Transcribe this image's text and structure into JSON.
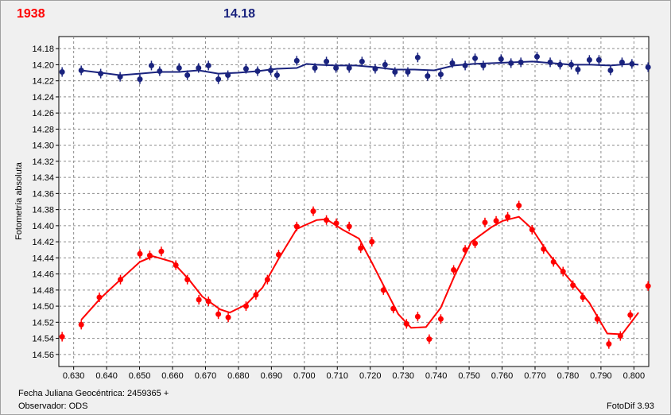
{
  "header": {
    "left_label": "1938",
    "right_label": "14.18"
  },
  "footer": {
    "date_label": "Fecha Juliana Geocéntrica: 2459365 +",
    "observer_label": "Observador: ODS",
    "version_label": "FotoDif 3.93"
  },
  "colors": {
    "red_series": "#ff0000",
    "blue_series": "#1a237e",
    "grid": "#8c8c8c",
    "plot_bg": "#ffffff"
  },
  "chart_data": {
    "type": "scatter",
    "title": "",
    "xlabel": "",
    "ylabel": "Fotometría absoluta",
    "xlim": [
      0.6255,
      0.8045
    ],
    "ylim": [
      14.165,
      14.575
    ],
    "y_inverted": true,
    "grid": true,
    "legend": "none",
    "x_ticks": [
      "0.630",
      "0.640",
      "0.650",
      "0.660",
      "0.670",
      "0.680",
      "0.690",
      "0.700",
      "0.710",
      "0.720",
      "0.730",
      "0.740",
      "0.750",
      "0.760",
      "0.770",
      "0.780",
      "0.790",
      "0.800"
    ],
    "y_ticks": [
      "14.18",
      "14.20",
      "14.22",
      "14.24",
      "14.26",
      "14.28",
      "14.30",
      "14.32",
      "14.34",
      "14.36",
      "14.38",
      "14.40",
      "14.42",
      "14.44",
      "14.46",
      "14.48",
      "14.50",
      "14.52",
      "14.54",
      "14.56"
    ],
    "series": [
      {
        "color": "#1a237e",
        "points": [
          [
            0.6265,
            14.209
          ],
          [
            0.6323,
            14.207
          ],
          [
            0.6382,
            14.211
          ],
          [
            0.6441,
            14.215
          ],
          [
            0.6501,
            14.218
          ],
          [
            0.6536,
            14.201
          ],
          [
            0.6561,
            14.208
          ],
          [
            0.662,
            14.204
          ],
          [
            0.6645,
            14.213
          ],
          [
            0.6679,
            14.204
          ],
          [
            0.6709,
            14.201
          ],
          [
            0.6739,
            14.218
          ],
          [
            0.6768,
            14.213
          ],
          [
            0.6823,
            14.205
          ],
          [
            0.6858,
            14.208
          ],
          [
            0.6898,
            14.207
          ],
          [
            0.6917,
            14.213
          ],
          [
            0.6977,
            14.195
          ],
          [
            0.7032,
            14.204
          ],
          [
            0.7067,
            14.196
          ],
          [
            0.7096,
            14.204
          ],
          [
            0.7136,
            14.204
          ],
          [
            0.7175,
            14.196
          ],
          [
            0.7215,
            14.205
          ],
          [
            0.7245,
            14.2
          ],
          [
            0.7275,
            14.209
          ],
          [
            0.7314,
            14.209
          ],
          [
            0.7344,
            14.191
          ],
          [
            0.7374,
            14.214
          ],
          [
            0.7414,
            14.212
          ],
          [
            0.7449,
            14.198
          ],
          [
            0.7488,
            14.201
          ],
          [
            0.7518,
            14.192
          ],
          [
            0.7543,
            14.201
          ],
          [
            0.7597,
            14.193
          ],
          [
            0.7627,
            14.198
          ],
          [
            0.7657,
            14.197
          ],
          [
            0.7706,
            14.19
          ],
          [
            0.7746,
            14.197
          ],
          [
            0.7776,
            14.2
          ],
          [
            0.781,
            14.2
          ],
          [
            0.783,
            14.206
          ],
          [
            0.7865,
            14.194
          ],
          [
            0.7894,
            14.194
          ],
          [
            0.7929,
            14.207
          ],
          [
            0.7964,
            14.197
          ],
          [
            0.7994,
            14.199
          ],
          [
            0.8043,
            14.203
          ]
        ],
        "fit": [
          [
            0.6323,
            14.207
          ],
          [
            0.6382,
            14.21
          ],
          [
            0.6441,
            14.213
          ],
          [
            0.6501,
            14.211
          ],
          [
            0.6561,
            14.209
          ],
          [
            0.662,
            14.209
          ],
          [
            0.6679,
            14.207
          ],
          [
            0.6739,
            14.211
          ],
          [
            0.6798,
            14.21
          ],
          [
            0.6858,
            14.208
          ],
          [
            0.6917,
            14.205
          ],
          [
            0.6977,
            14.204
          ],
          [
            0.7007,
            14.199
          ],
          [
            0.7037,
            14.2
          ],
          [
            0.7096,
            14.201
          ],
          [
            0.7156,
            14.201
          ],
          [
            0.7215,
            14.203
          ],
          [
            0.7275,
            14.206
          ],
          [
            0.7334,
            14.206
          ],
          [
            0.7394,
            14.207
          ],
          [
            0.7454,
            14.201
          ],
          [
            0.7513,
            14.199
          ],
          [
            0.7573,
            14.198
          ],
          [
            0.7632,
            14.197
          ],
          [
            0.7692,
            14.196
          ],
          [
            0.7751,
            14.198
          ],
          [
            0.781,
            14.2
          ],
          [
            0.787,
            14.2
          ],
          [
            0.7929,
            14.201
          ],
          [
            0.7989,
            14.199
          ],
          [
            0.8014,
            14.2
          ]
        ]
      },
      {
        "color": "#ff0000",
        "points": [
          [
            0.6265,
            14.538
          ],
          [
            0.6323,
            14.523
          ],
          [
            0.6378,
            14.489
          ],
          [
            0.6442,
            14.467
          ],
          [
            0.6501,
            14.435
          ],
          [
            0.6531,
            14.437
          ],
          [
            0.6566,
            14.432
          ],
          [
            0.661,
            14.449
          ],
          [
            0.6645,
            14.467
          ],
          [
            0.668,
            14.492
          ],
          [
            0.6709,
            14.494
          ],
          [
            0.6739,
            14.51
          ],
          [
            0.6769,
            14.514
          ],
          [
            0.6823,
            14.5
          ],
          [
            0.6853,
            14.486
          ],
          [
            0.6888,
            14.467
          ],
          [
            0.6922,
            14.436
          ],
          [
            0.6977,
            14.401
          ],
          [
            0.7027,
            14.382
          ],
          [
            0.7067,
            14.393
          ],
          [
            0.7097,
            14.397
          ],
          [
            0.7136,
            14.401
          ],
          [
            0.7171,
            14.428
          ],
          [
            0.7205,
            14.42
          ],
          [
            0.724,
            14.48
          ],
          [
            0.727,
            14.503
          ],
          [
            0.731,
            14.522
          ],
          [
            0.7344,
            14.513
          ],
          [
            0.7379,
            14.541
          ],
          [
            0.7414,
            14.516
          ],
          [
            0.7453,
            14.455
          ],
          [
            0.7488,
            14.43
          ],
          [
            0.7518,
            14.422
          ],
          [
            0.7548,
            14.396
          ],
          [
            0.7582,
            14.394
          ],
          [
            0.7617,
            14.389
          ],
          [
            0.7651,
            14.375
          ],
          [
            0.7691,
            14.405
          ],
          [
            0.7726,
            14.429
          ],
          [
            0.7756,
            14.445
          ],
          [
            0.7785,
            14.457
          ],
          [
            0.7815,
            14.474
          ],
          [
            0.7845,
            14.489
          ],
          [
            0.7889,
            14.516
          ],
          [
            0.7924,
            14.547
          ],
          [
            0.7959,
            14.537
          ],
          [
            0.7989,
            14.511
          ],
          [
            0.8043,
            14.475
          ]
        ],
        "fit": [
          [
            0.6323,
            14.517
          ],
          [
            0.6382,
            14.49
          ],
          [
            0.6442,
            14.467
          ],
          [
            0.6501,
            14.445
          ],
          [
            0.6541,
            14.438
          ],
          [
            0.66,
            14.445
          ],
          [
            0.665,
            14.467
          ],
          [
            0.669,
            14.488
          ],
          [
            0.6744,
            14.504
          ],
          [
            0.6774,
            14.508
          ],
          [
            0.6823,
            14.498
          ],
          [
            0.6873,
            14.477
          ],
          [
            0.6922,
            14.441
          ],
          [
            0.6977,
            14.404
          ],
          [
            0.7037,
            14.393
          ],
          [
            0.7067,
            14.392
          ],
          [
            0.7116,
            14.405
          ],
          [
            0.7166,
            14.416
          ],
          [
            0.7205,
            14.446
          ],
          [
            0.724,
            14.474
          ],
          [
            0.7285,
            14.51
          ],
          [
            0.7324,
            14.527
          ],
          [
            0.7369,
            14.526
          ],
          [
            0.7414,
            14.502
          ],
          [
            0.7458,
            14.46
          ],
          [
            0.7507,
            14.42
          ],
          [
            0.7567,
            14.402
          ],
          [
            0.7602,
            14.394
          ],
          [
            0.7651,
            14.389
          ],
          [
            0.7691,
            14.404
          ],
          [
            0.7736,
            14.432
          ],
          [
            0.7776,
            14.453
          ],
          [
            0.782,
            14.474
          ],
          [
            0.7865,
            14.496
          ],
          [
            0.7919,
            14.534
          ],
          [
            0.7964,
            14.535
          ],
          [
            0.8014,
            14.508
          ]
        ]
      }
    ]
  }
}
